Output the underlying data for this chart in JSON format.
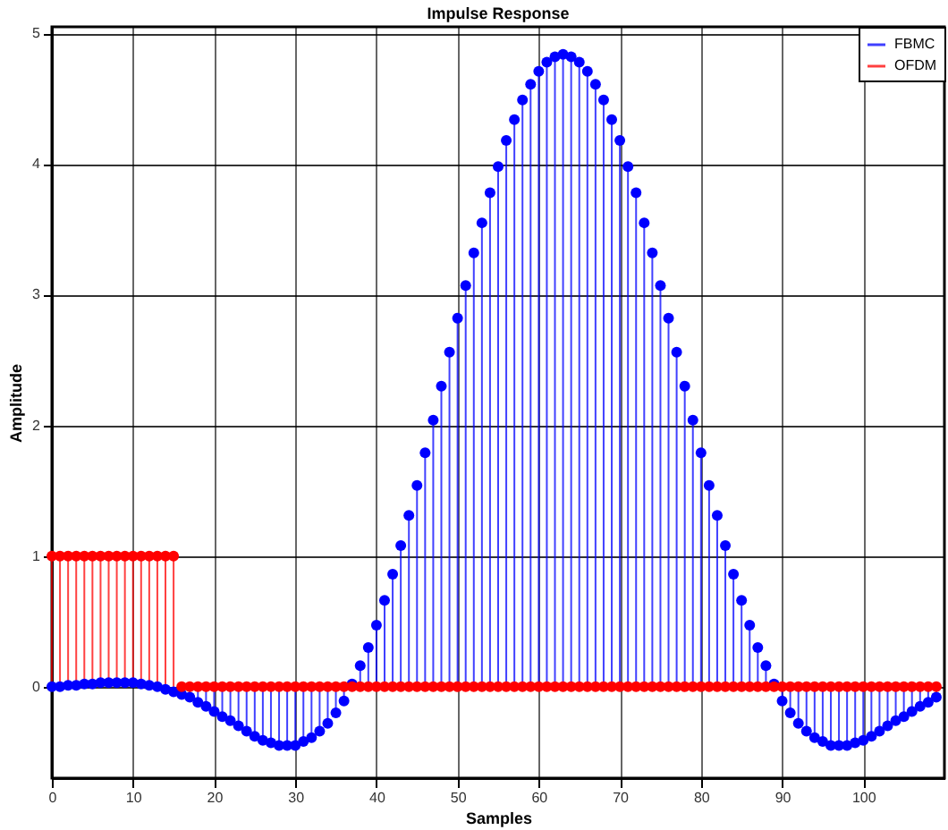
{
  "chart_data": {
    "type": "lollipop",
    "title": "Impulse Response",
    "xlabel": "Samples",
    "ylabel": "Amplitude",
    "x": [
      0,
      1,
      2,
      3,
      4,
      5,
      6,
      7,
      8,
      9,
      10,
      11,
      12,
      13,
      14,
      15,
      16,
      17,
      18,
      19,
      20,
      21,
      22,
      23,
      24,
      25,
      26,
      27,
      28,
      29,
      30,
      31,
      32,
      33,
      34,
      35,
      36,
      37,
      38,
      39,
      40,
      41,
      42,
      43,
      44,
      45,
      46,
      47,
      48,
      49,
      50,
      51,
      52,
      53,
      54,
      55,
      56,
      57,
      58,
      59,
      60,
      61,
      62,
      63,
      64,
      65,
      66,
      67,
      68,
      69,
      70,
      71,
      72,
      73,
      74,
      75,
      76,
      77,
      78,
      79,
      80,
      81,
      82,
      83,
      84,
      85,
      86,
      87,
      88,
      89,
      90,
      91,
      92,
      93,
      94,
      95,
      96,
      97,
      98,
      99,
      100,
      101,
      102,
      103,
      104,
      105,
      106,
      107,
      108,
      109
    ],
    "series": [
      {
        "name": "FBMC",
        "color": "#0000ff",
        "values": [
          0,
          0,
          0.01,
          0.01,
          0.02,
          0.02,
          0.03,
          0.03,
          0.03,
          0.03,
          0.03,
          0.02,
          0.01,
          0,
          -0.02,
          -0.04,
          -0.06,
          -0.08,
          -0.12,
          -0.15,
          -0.19,
          -0.23,
          -0.26,
          -0.3,
          -0.34,
          -0.38,
          -0.41,
          -0.43,
          -0.45,
          -0.45,
          -0.45,
          -0.42,
          -0.39,
          -0.34,
          -0.28,
          -0.2,
          -0.11,
          0.02,
          0.16,
          0.3,
          0.47,
          0.66,
          0.86,
          1.08,
          1.31,
          1.54,
          1.79,
          2.04,
          2.3,
          2.56,
          2.82,
          3.07,
          3.32,
          3.55,
          3.78,
          3.98,
          4.18,
          4.34,
          4.49,
          4.61,
          4.71,
          4.78,
          4.82,
          4.84,
          4.82,
          4.78,
          4.71,
          4.61,
          4.49,
          4.34,
          4.18,
          3.98,
          3.78,
          3.55,
          3.32,
          3.07,
          2.82,
          2.56,
          2.3,
          2.04,
          1.79,
          1.54,
          1.31,
          1.08,
          0.86,
          0.66,
          0.47,
          0.3,
          0.16,
          0.02,
          -0.11,
          -0.2,
          -0.28,
          -0.34,
          -0.39,
          -0.42,
          -0.45,
          -0.45,
          -0.45,
          -0.43,
          -0.41,
          -0.38,
          -0.34,
          -0.3,
          -0.26,
          -0.23,
          -0.19,
          -0.15,
          -0.12,
          -0.08
        ]
      },
      {
        "name": "OFDM",
        "color": "#ff0000",
        "values": [
          1,
          1,
          1,
          1,
          1,
          1,
          1,
          1,
          1,
          1,
          1,
          1,
          1,
          1,
          1,
          1,
          0,
          0,
          0,
          0,
          0,
          0,
          0,
          0,
          0,
          0,
          0,
          0,
          0,
          0,
          0,
          0,
          0,
          0,
          0,
          0,
          0,
          0,
          0,
          0,
          0,
          0,
          0,
          0,
          0,
          0,
          0,
          0,
          0,
          0,
          0,
          0,
          0,
          0,
          0,
          0,
          0,
          0,
          0,
          0,
          0,
          0,
          0,
          0,
          0,
          0,
          0,
          0,
          0,
          0,
          0,
          0,
          0,
          0,
          0,
          0,
          0,
          0,
          0,
          0,
          0,
          0,
          0,
          0,
          0,
          0,
          0,
          0,
          0,
          0,
          0,
          0,
          0,
          0,
          0,
          0,
          0,
          0,
          0,
          0,
          0,
          0,
          0,
          0,
          0,
          0,
          0,
          0,
          0,
          0
        ]
      }
    ],
    "xlim": [
      0,
      110
    ],
    "xticks": [
      0,
      10,
      20,
      30,
      40,
      50,
      60,
      70,
      80,
      90,
      100
    ],
    "ylim": [
      -0.7,
      5.05
    ],
    "yticks": [
      0,
      1,
      2,
      3,
      4,
      5
    ],
    "grid": true,
    "legend": "top right",
    "marker": "circle"
  }
}
